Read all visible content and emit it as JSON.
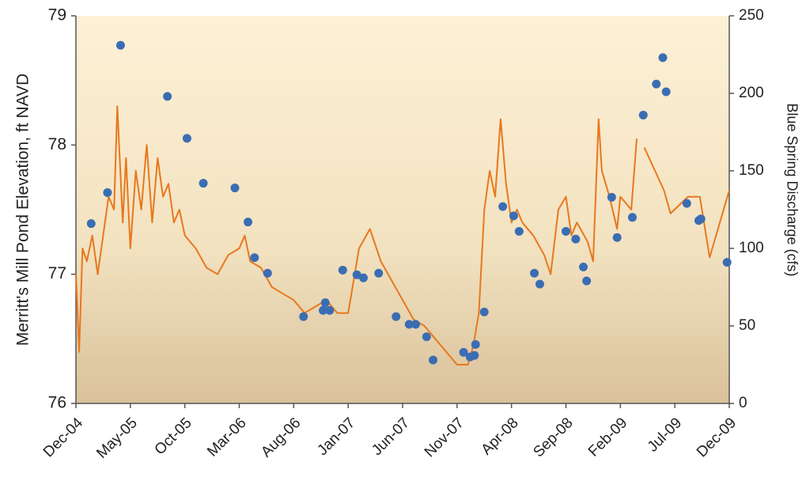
{
  "chart_data": {
    "type": "combo",
    "ylabel": "Merritt's Mill Pond Elevation, ft NAVD",
    "y2label": "Blue Spring Discharge (cfs)",
    "xlim": [
      0,
      60
    ],
    "xticks": [
      {
        "value": 0,
        "label": "Dec-04"
      },
      {
        "value": 5,
        "label": "May-05"
      },
      {
        "value": 10,
        "label": "Oct-05"
      },
      {
        "value": 15,
        "label": "Mar-06"
      },
      {
        "value": 20,
        "label": "Aug-06"
      },
      {
        "value": 25,
        "label": "Jan-07"
      },
      {
        "value": 30,
        "label": "Jun-07"
      },
      {
        "value": 35,
        "label": "Nov-07"
      },
      {
        "value": 40,
        "label": "Apr-08"
      },
      {
        "value": 45,
        "label": "Sep-08"
      },
      {
        "value": 50,
        "label": "Feb-09"
      },
      {
        "value": 55,
        "label": "Jul-09"
      },
      {
        "value": 60,
        "label": "Dec-09"
      }
    ],
    "ylim": [
      76,
      79
    ],
    "yticks": [
      76,
      77,
      78,
      79
    ],
    "y2lim": [
      0,
      250
    ],
    "y2ticks": [
      0,
      50,
      100,
      150,
      200,
      250
    ],
    "series": [
      {
        "type": "line",
        "color": "#e8781e",
        "x": [
          0,
          0.3,
          0.6,
          1,
          1.5,
          2,
          2.5,
          3,
          3.5,
          3.8,
          4.3,
          4.6,
          5,
          5.5,
          6,
          6.5,
          7,
          7.5,
          8,
          8.5,
          9,
          9.5,
          10,
          11,
          12,
          13,
          14,
          15,
          15.5,
          16,
          17,
          18,
          19,
          20,
          21,
          22,
          23,
          24,
          25,
          26,
          27,
          28,
          29,
          30,
          31,
          32,
          33,
          34,
          35,
          36,
          36.5,
          37,
          37.5,
          38,
          38.5,
          39,
          39.5,
          40,
          40.5,
          41,
          42,
          43,
          43.6,
          44.3,
          45,
          45.5,
          46,
          47,
          47.5,
          48,
          48.3,
          49,
          49.7,
          50,
          51,
          51.5,
          51.8,
          52.2,
          54,
          54.6,
          56.2,
          57.3,
          58.2,
          60
        ],
        "values": [
          77.0,
          76.4,
          77.2,
          77.1,
          77.3,
          77.0,
          77.3,
          77.6,
          77.5,
          78.3,
          77.4,
          77.9,
          77.2,
          77.8,
          77.5,
          78.0,
          77.4,
          77.9,
          77.6,
          77.7,
          77.4,
          77.5,
          77.3,
          77.2,
          77.05,
          77.0,
          77.15,
          77.2,
          77.3,
          77.1,
          77.05,
          76.9,
          76.85,
          76.8,
          76.7,
          76.75,
          76.8,
          76.7,
          76.7,
          77.2,
          77.35,
          77.1,
          76.95,
          76.8,
          76.65,
          76.6,
          76.5,
          76.4,
          76.3,
          76.3,
          76.45,
          76.7,
          77.5,
          77.8,
          77.6,
          78.2,
          77.7,
          77.4,
          77.5,
          77.4,
          77.3,
          77.15,
          77.0,
          77.5,
          77.6,
          77.3,
          77.4,
          77.25,
          77.1,
          78.2,
          77.8,
          77.6,
          77.35,
          77.6,
          77.5,
          78.05,
          null,
          77.98,
          77.65,
          77.47,
          77.6,
          77.6,
          77.13,
          77.65
        ]
      },
      {
        "type": "scatter",
        "color": "#3b6db3",
        "axis": "y2",
        "x": [
          1.4,
          2.9,
          4.1,
          8.4,
          10.2,
          11.7,
          14.6,
          15.8,
          16.4,
          17.6,
          20.9,
          22.7,
          22.9,
          23.3,
          24.5,
          25.8,
          26.4,
          27.8,
          29.4,
          30.6,
          31.2,
          32.2,
          32.8,
          35.6,
          36.2,
          36.6,
          36.7,
          37.5,
          39.2,
          40.2,
          40.7,
          42.1,
          42.6,
          45,
          45.9,
          46.6,
          46.9,
          49.2,
          49.7,
          51.1,
          52.1,
          53.3,
          53.9,
          54.2,
          56.1,
          57.2,
          57.4,
          59.8
        ],
        "values": [
          116,
          136,
          231,
          198,
          171,
          142,
          139,
          117,
          94,
          84,
          56,
          60,
          65,
          60,
          86,
          83,
          81,
          84,
          56,
          51,
          51,
          43,
          28,
          33,
          30,
          31,
          38,
          59,
          127,
          121,
          111,
          84,
          77,
          111,
          106,
          88,
          79,
          133,
          107,
          120,
          186,
          206,
          223,
          201,
          129,
          118,
          119,
          91
        ]
      }
    ]
  }
}
